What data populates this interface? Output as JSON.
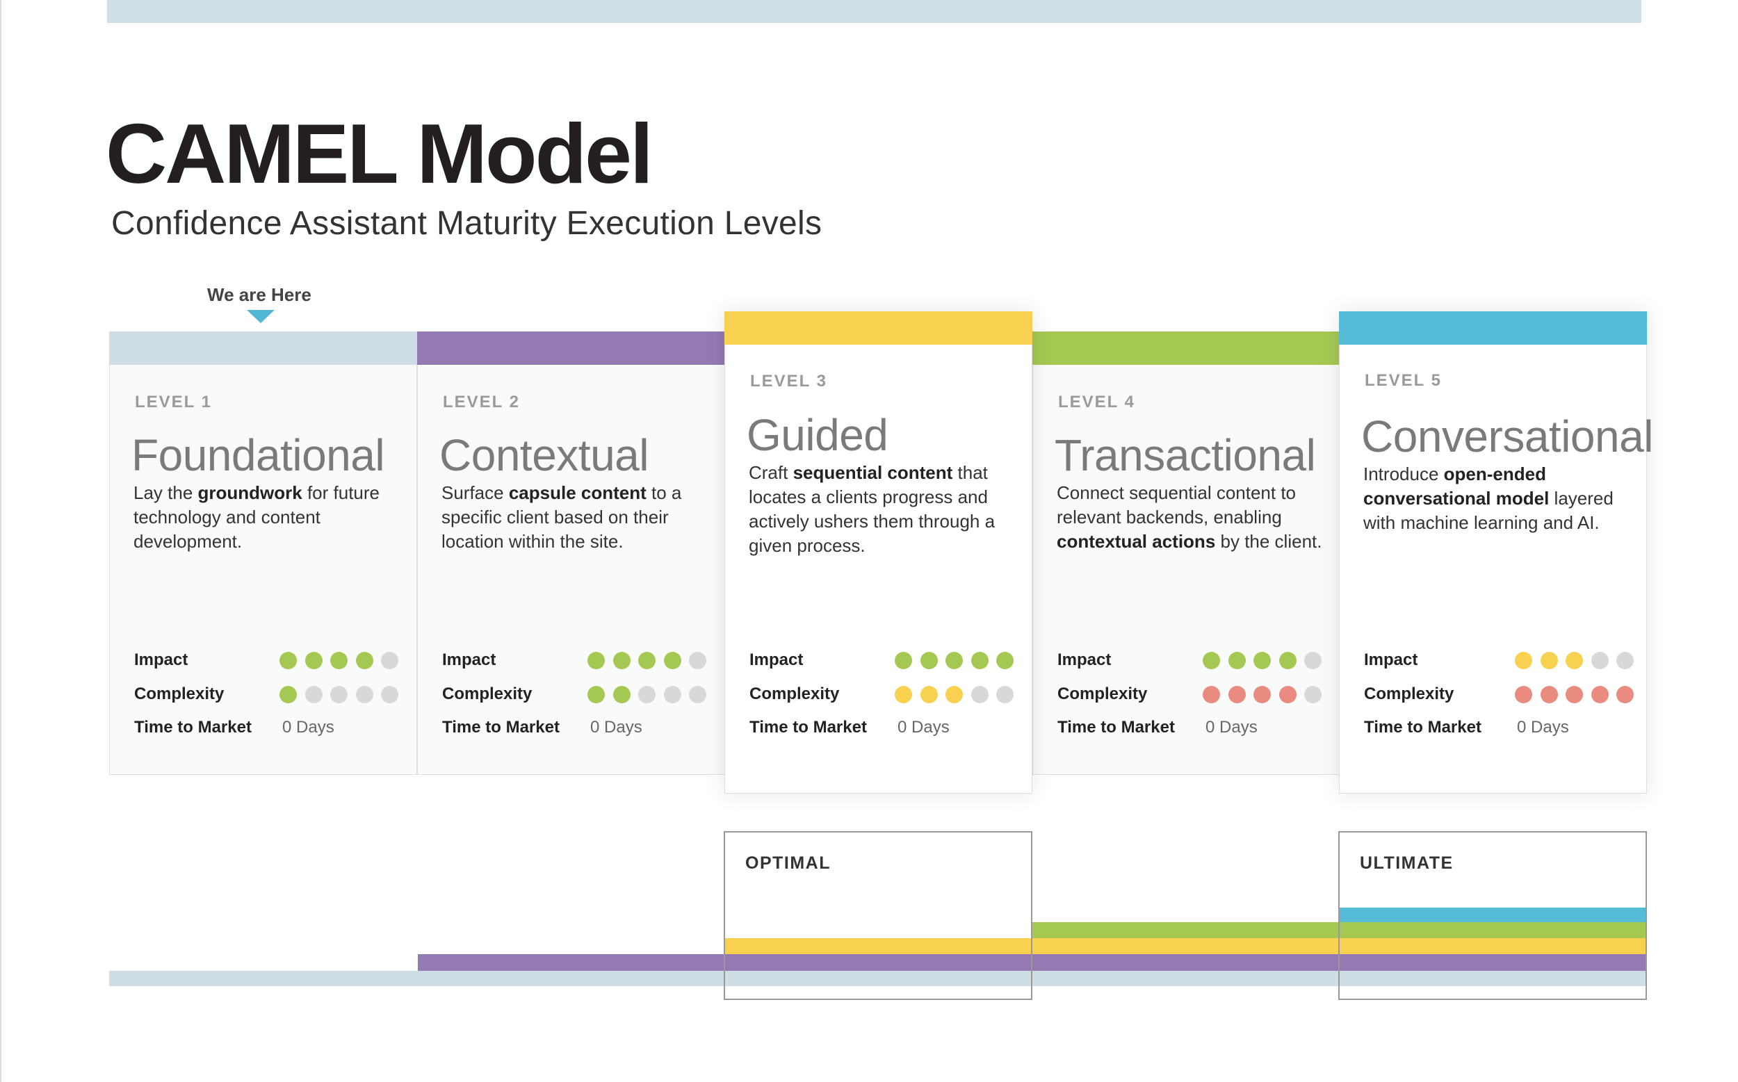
{
  "header": {
    "title": "CAMEL Model",
    "subtitle": "Confidence Assistant Maturity Execution Levels"
  },
  "marker": {
    "label": "We are Here",
    "level_index": 0
  },
  "metric_labels": {
    "impact": "Impact",
    "complexity": "Complexity",
    "time": "Time to Market"
  },
  "max_dots": 5,
  "colors": {
    "level1": "#cfdee5",
    "level2": "#9579b3",
    "level3": "#f8d151",
    "level4": "#a5c852",
    "level5": "#56bbd6",
    "dot_green": "#a5c852",
    "dot_yellow": "#f8d151",
    "dot_red": "#e98b7f",
    "dot_empty": "#d7d8d9",
    "marker_arrow": "#51b7d3"
  },
  "levels": [
    {
      "level": "LEVEL 1",
      "title": "Foundational",
      "description": [
        "Lay the ",
        "groundwork",
        " for future technology and content development."
      ],
      "impact": 4,
      "complexity": 1,
      "impact_color": "dot_green",
      "complexity_color": "dot_green",
      "time_to_market": "0 Days"
    },
    {
      "level": "LEVEL 2",
      "title": "Contextual",
      "description": [
        "Surface ",
        "capsule content",
        " to a specific client based on their location within the site."
      ],
      "impact": 4,
      "complexity": 2,
      "impact_color": "dot_green",
      "complexity_color": "dot_green",
      "time_to_market": "0 Days"
    },
    {
      "level": "LEVEL 3",
      "title": "Guided",
      "description": [
        "Craft ",
        "sequential content",
        " that locates a clients progress and actively ushers them through a given process."
      ],
      "impact": 5,
      "complexity": 3,
      "impact_color": "dot_green",
      "complexity_color": "dot_yellow",
      "time_to_market": "0 Days"
    },
    {
      "level": "LEVEL 4",
      "title": "Transactional",
      "description": [
        "Connect sequential content to relevant backends, enabling ",
        "contextual actions",
        " by the client."
      ],
      "impact": 4,
      "complexity": 4,
      "impact_color": "dot_green",
      "complexity_color": "dot_red",
      "time_to_market": "0 Days"
    },
    {
      "level": "LEVEL 5",
      "title": "Conversational",
      "description": [
        "Introduce ",
        "open-ended conversational model",
        " layered with machine learning and AI."
      ],
      "impact": 3,
      "complexity": 5,
      "impact_color": "dot_yellow",
      "complexity_color": "dot_red",
      "time_to_market": "0 Days"
    }
  ],
  "milestones": [
    {
      "label": "OPTIMAL",
      "level_index": 2
    },
    {
      "label": "ULTIMATE",
      "level_index": 4
    }
  ]
}
